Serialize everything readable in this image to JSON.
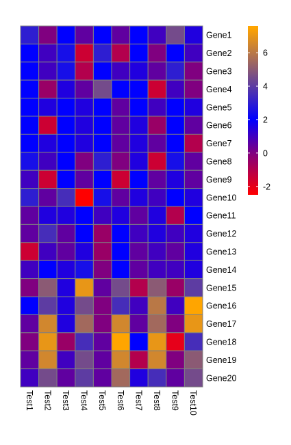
{
  "chart_data": {
    "type": "heatmap",
    "title": "",
    "xlabel": "",
    "ylabel": "",
    "rows": [
      "Gene1",
      "Gene2",
      "Gene3",
      "Gene4",
      "Gene5",
      "Gene6",
      "Gene7",
      "Gene8",
      "Gene9",
      "Gene10",
      "Gene11",
      "Gene12",
      "Gene13",
      "Gene14",
      "Gene15",
      "Gene16",
      "Gene17",
      "Gene18",
      "Gene19",
      "Gene20"
    ],
    "columns": [
      "Test1",
      "Test2",
      "Test3",
      "Test4",
      "Test5",
      "Test6",
      "Test7",
      "Test8",
      "Test9",
      "Test10"
    ],
    "values": [
      [
        3.0,
        0.0,
        2.0,
        0.5,
        2.0,
        0.5,
        2.0,
        1.0,
        4.5,
        1.5
      ],
      [
        2.0,
        1.0,
        2.5,
        -1.5,
        3.0,
        -1.0,
        2.0,
        0.0,
        2.0,
        1.0
      ],
      [
        2.0,
        1.0,
        2.5,
        -1.0,
        2.0,
        1.0,
        1.5,
        0.5,
        3.0,
        0.0
      ],
      [
        2.0,
        -0.5,
        1.5,
        0.5,
        4.5,
        2.0,
        2.0,
        -1.5,
        1.0,
        0.0
      ],
      [
        2.0,
        1.5,
        2.0,
        1.5,
        2.0,
        0.5,
        2.0,
        1.0,
        2.0,
        1.5
      ],
      [
        2.0,
        -1.5,
        2.0,
        1.5,
        2.0,
        0.5,
        1.5,
        -0.5,
        2.0,
        0.5
      ],
      [
        2.0,
        1.5,
        2.0,
        1.5,
        2.0,
        0.5,
        1.5,
        0.5,
        2.0,
        -1.0
      ],
      [
        2.5,
        1.0,
        2.0,
        0.0,
        3.0,
        0.0,
        1.5,
        -1.5,
        2.5,
        0.5
      ],
      [
        1.0,
        -1.5,
        2.0,
        0.5,
        2.0,
        -1.5,
        2.0,
        0.5,
        1.5,
        0.5
      ],
      [
        3.0,
        0.5,
        3.5,
        -2.5,
        2.5,
        0.5,
        1.5,
        1.0,
        2.0,
        1.5
      ],
      [
        0.5,
        1.5,
        1.5,
        2.0,
        1.0,
        1.5,
        0.5,
        1.5,
        -1.0,
        2.0
      ],
      [
        0.5,
        3.5,
        0.5,
        2.0,
        -0.5,
        2.0,
        1.0,
        1.5,
        1.0,
        1.5
      ],
      [
        -1.5,
        1.0,
        0.5,
        1.5,
        -0.5,
        2.0,
        0.5,
        1.0,
        0.5,
        1.5
      ],
      [
        1.0,
        2.0,
        1.5,
        2.5,
        0.0,
        2.0,
        0.5,
        1.0,
        1.0,
        1.5
      ],
      [
        0.0,
        5.0,
        1.5,
        7.0,
        0.5,
        4.5,
        -1.0,
        5.0,
        -0.5,
        4.0
      ],
      [
        2.0,
        4.0,
        1.5,
        4.5,
        0.0,
        3.5,
        1.0,
        6.0,
        1.0,
        7.5
      ],
      [
        0.5,
        6.5,
        1.5,
        5.5,
        0.0,
        6.5,
        0.5,
        5.5,
        0.0,
        7.0
      ],
      [
        0.0,
        7.0,
        -0.5,
        3.5,
        0.5,
        7.5,
        2.0,
        7.0,
        -2.0,
        3.5
      ],
      [
        0.5,
        6.5,
        1.0,
        4.5,
        0.5,
        6.5,
        -1.0,
        6.5,
        0.0,
        5.0
      ],
      [
        1.0,
        4.5,
        0.5,
        4.0,
        0.5,
        5.5,
        1.5,
        3.5,
        0.5,
        4.5
      ]
    ],
    "color_scale": {
      "stops": [
        {
          "value": -2.5,
          "color": "#ff0000"
        },
        {
          "value": 0.0,
          "color": "#800080"
        },
        {
          "value": 2.0,
          "color": "#0000ff"
        },
        {
          "value": 7.5,
          "color": "#ffa500"
        }
      ],
      "legend_ticks": [
        -2,
        0,
        2,
        4,
        6
      ],
      "legend_tick_labels": [
        "-2",
        "0",
        "2",
        "4",
        "6"
      ],
      "legend_range": [
        -2.5,
        7.6
      ]
    },
    "cell_border_color": "#808080",
    "legend_position": "right"
  }
}
